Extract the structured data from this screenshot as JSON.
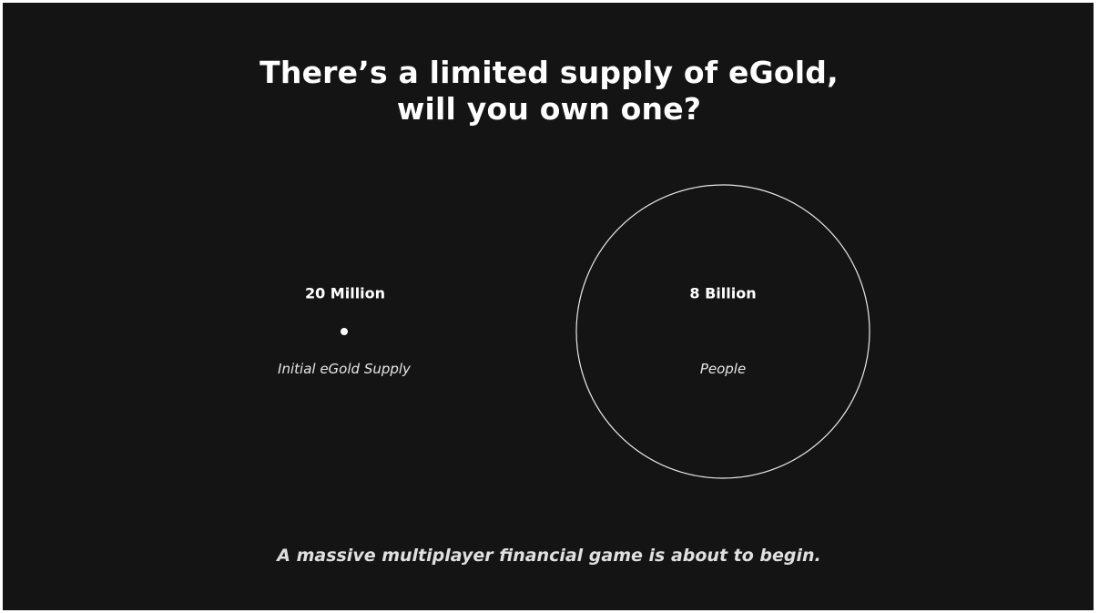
{
  "title": [
    "There’s a limited supply of eGold,",
    "will you own one?"
  ],
  "items": [
    {
      "value": "20 Million",
      "caption": "Initial eGold Supply"
    },
    {
      "value": "8 Billion",
      "caption": "People"
    }
  ],
  "footer": "A massive multiplayer financial game is about to begin."
}
